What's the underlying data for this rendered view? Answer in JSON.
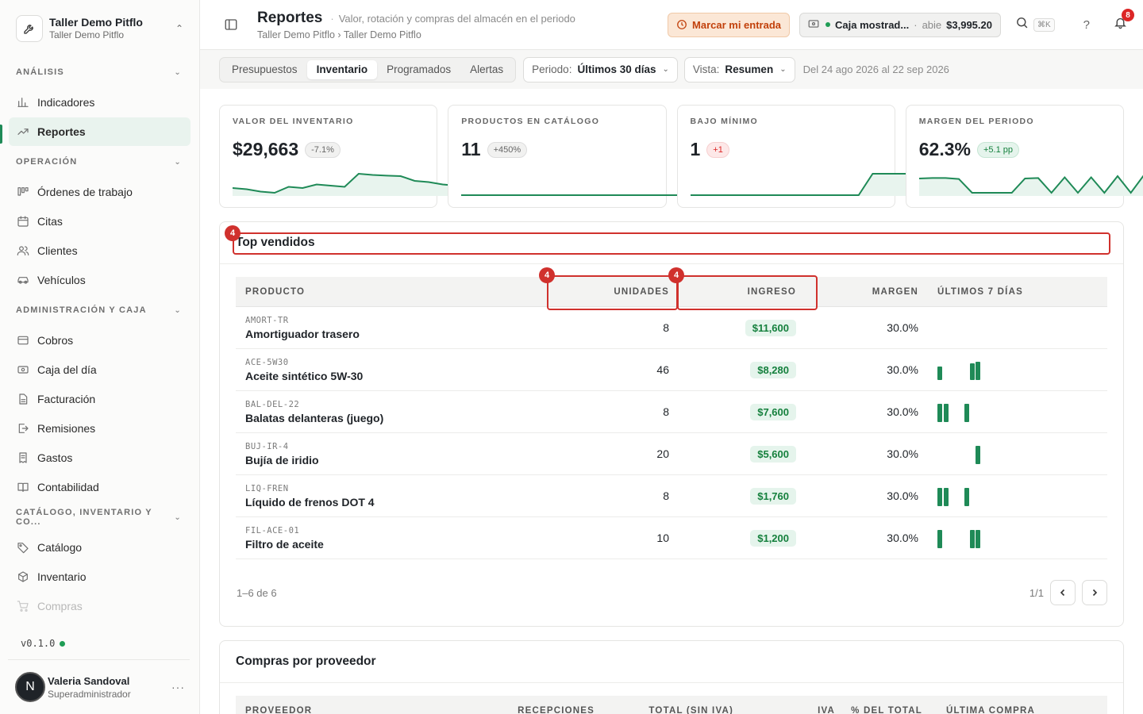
{
  "org": {
    "name": "Taller Demo Pitflo",
    "sub": "Taller Demo Pitflo"
  },
  "nav": [
    {
      "section": "ANÁLISIS",
      "items": [
        {
          "label": "Indicadores",
          "icon": "bar-chart-icon"
        },
        {
          "label": "Reportes",
          "icon": "trend-icon",
          "active": true
        }
      ]
    },
    {
      "section": "OPERACIÓN",
      "items": [
        {
          "label": "Órdenes de trabajo",
          "icon": "kanban-icon"
        },
        {
          "label": "Citas",
          "icon": "calendar-icon"
        },
        {
          "label": "Clientes",
          "icon": "users-icon"
        },
        {
          "label": "Vehículos",
          "icon": "car-icon"
        }
      ]
    },
    {
      "section": "ADMINISTRACIÓN Y CAJA",
      "items": [
        {
          "label": "Cobros",
          "icon": "credit-card-icon"
        },
        {
          "label": "Caja del día",
          "icon": "cash-icon"
        },
        {
          "label": "Facturación",
          "icon": "document-icon"
        },
        {
          "label": "Remisiones",
          "icon": "export-icon"
        },
        {
          "label": "Gastos",
          "icon": "receipt-icon"
        },
        {
          "label": "Contabilidad",
          "icon": "book-icon"
        }
      ]
    },
    {
      "section": "CATÁLOGO, INVENTARIO Y CO...",
      "items": [
        {
          "label": "Catálogo",
          "icon": "tag-icon"
        },
        {
          "label": "Inventario",
          "icon": "box-icon"
        },
        {
          "label": "Compras",
          "icon": "cart-icon"
        }
      ]
    }
  ],
  "version": "v0.1.0",
  "user": {
    "initial": "N",
    "name": "Valeria Sandoval",
    "role": "Superadministrador"
  },
  "header": {
    "title": "Reportes",
    "subtitle": "Valor, rotación y compras del almacén en el periodo",
    "breadcrumb": "Taller Demo Pitflo › Taller Demo Pitflo",
    "entry_button": "Marcar mi entrada",
    "caja": {
      "name": "Caja mostrad...",
      "status": "abie",
      "amount": "$3,995.20"
    },
    "shortcut": "⌘K",
    "help": "?",
    "notifications": "8"
  },
  "filters": {
    "tabs": [
      "Presupuestos",
      "Inventario",
      "Programados",
      "Alertas"
    ],
    "active_tab": "Inventario",
    "period_label": "Periodo:",
    "period_value": "Últimos 30 días",
    "view_label": "Vista:",
    "view_value": "Resumen",
    "range": "Del 24 ago 2026 al 22 sep 2026"
  },
  "kpis": [
    {
      "label": "VALOR DEL INVENTARIO",
      "value": "$29,663",
      "delta": "-7.1%",
      "tone": "neutral",
      "spark": [
        0.3,
        0.25,
        0.15,
        0.1,
        0.35,
        0.3,
        0.45,
        0.4,
        0.35,
        0.9,
        0.85,
        0.82,
        0.8,
        0.6,
        0.55,
        0.45,
        0.4,
        0.3
      ]
    },
    {
      "label": "PRODUCTOS EN CATÁLOGO",
      "value": "11",
      "delta": "+450%",
      "tone": "neutral",
      "spark": [
        0,
        0,
        0,
        0,
        0,
        0,
        0,
        0,
        0,
        0,
        0,
        0,
        0,
        0,
        0,
        0,
        0,
        0.85
      ]
    },
    {
      "label": "BAJO MÍNIMO",
      "value": "1",
      "delta": "+1",
      "tone": "neg",
      "spark": [
        0,
        0,
        0,
        0,
        0,
        0,
        0,
        0,
        0,
        0,
        0,
        0,
        0,
        0.9,
        0.9,
        0.9,
        0.9,
        0.9
      ]
    },
    {
      "label": "MARGEN DEL PERIODO",
      "value": "62.3%",
      "delta": "+5.1 pp",
      "tone": "pos",
      "spark": [
        0.7,
        0.72,
        0.72,
        0.68,
        0.1,
        0.1,
        0.1,
        0.1,
        0.7,
        0.72,
        0.1,
        0.75,
        0.1,
        0.75,
        0.1,
        0.8,
        0.1,
        0.85,
        0.1
      ]
    }
  ],
  "top_sellers": {
    "title": "Top vendidos",
    "columns": {
      "product": "PRODUCTO",
      "units": "UNIDADES",
      "revenue": "INGRESO",
      "margin": "MARGEN",
      "days": "ÚLTIMOS 7 DÍAS"
    },
    "rows": [
      {
        "sku": "AMORT-TR",
        "name": "Amortiguador trasero",
        "units": "8",
        "revenue": "$11,600",
        "margin": "30.0%",
        "days": [
          0,
          0,
          0,
          0,
          0,
          0,
          0
        ]
      },
      {
        "sku": "ACE-5W30",
        "name": "Aceite sintético 5W-30",
        "units": "46",
        "revenue": "$8,280",
        "margin": "30.0%",
        "days": [
          0.65,
          0,
          0,
          0,
          0,
          0.8,
          0.9
        ]
      },
      {
        "sku": "BAL-DEL-22",
        "name": "Balatas delanteras (juego)",
        "units": "8",
        "revenue": "$7,600",
        "margin": "30.0%",
        "days": [
          0.9,
          0.9,
          0,
          0,
          0.9,
          0,
          0
        ]
      },
      {
        "sku": "BUJ-IR-4",
        "name": "Bujía de iridio",
        "units": "20",
        "revenue": "$5,600",
        "margin": "30.0%",
        "days": [
          0,
          0,
          0,
          0,
          0,
          0,
          0.9
        ]
      },
      {
        "sku": "LIQ-FREN",
        "name": "Líquido de frenos DOT 4",
        "units": "8",
        "revenue": "$1,760",
        "margin": "30.0%",
        "days": [
          0.9,
          0.9,
          0,
          0,
          0.9,
          0,
          0
        ]
      },
      {
        "sku": "FIL-ACE-01",
        "name": "Filtro de aceite",
        "units": "10",
        "revenue": "$1,200",
        "margin": "30.0%",
        "days": [
          0.9,
          0,
          0,
          0,
          0,
          0.9,
          0.9
        ]
      }
    ],
    "summary": "1–6 de 6",
    "page": "1/1"
  },
  "suppliers": {
    "title": "Compras por proveedor",
    "columns": [
      "PROVEEDOR",
      "RECEPCIONES",
      "TOTAL (SIN IVA)",
      "IVA",
      "% DEL TOTAL",
      "ÚLTIMA COMPRA"
    ]
  },
  "annotations": {
    "marker": "4"
  },
  "colors": {
    "accent": "#1f8a57",
    "highlight": "#d0312d",
    "warning": "#c2410c"
  }
}
